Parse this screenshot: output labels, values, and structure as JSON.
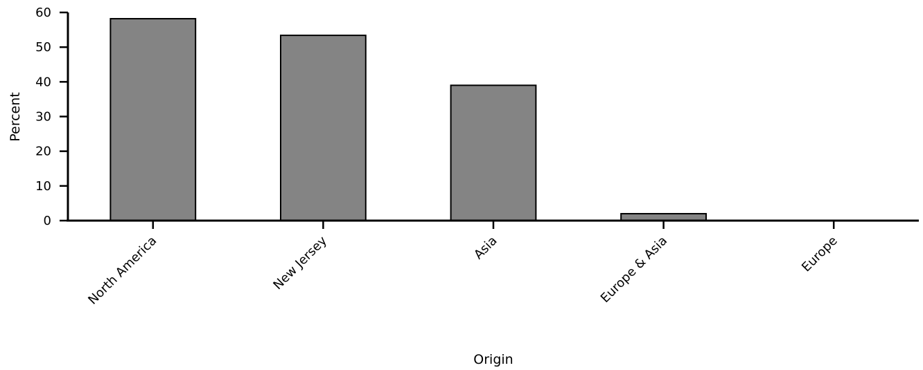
{
  "chart_data": {
    "type": "bar",
    "title": "",
    "xlabel": "Origin",
    "ylabel": "Percent",
    "categories": [
      "North America",
      "New Jersey",
      "Asia",
      "Europe & Asia",
      "Europe"
    ],
    "values": [
      58.2,
      53.4,
      39.0,
      2.0,
      0.0
    ],
    "ylim": [
      0,
      60
    ],
    "yticks": [
      "0",
      "10",
      "20",
      "30",
      "40",
      "50",
      "60"
    ],
    "grid": false,
    "legend": "none",
    "bar_color": "#848484"
  }
}
